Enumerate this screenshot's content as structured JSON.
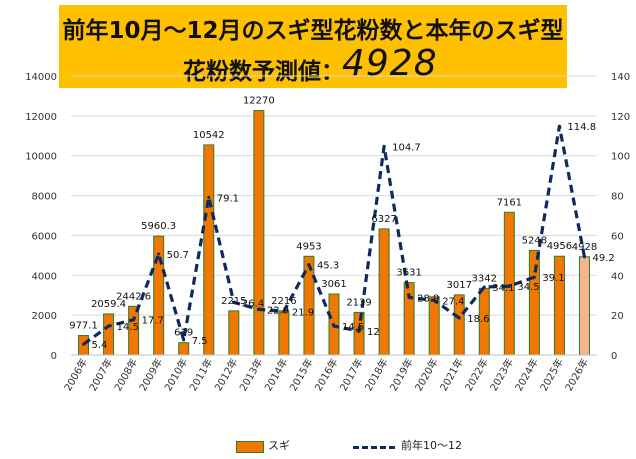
{
  "title": {
    "line1": "前年10月～12月のスギ型花粉数と本年のスギ型",
    "line2": "花粉数予測値：",
    "value": "4928"
  },
  "colors": {
    "bar": "#f07800",
    "bar_border": "#2f7b2f",
    "bar_forecast": "#f8b48e",
    "line": "#0f2a5e",
    "grid": "#d9d9d9",
    "title_bg": "#ffc000"
  },
  "chart_data": {
    "type": "bar",
    "categories": [
      "2006年",
      "2007年",
      "2008年",
      "2009年",
      "2010年",
      "2011年",
      "2012年",
      "2013年",
      "2014年",
      "2015年",
      "2016年",
      "2017年",
      "2018年",
      "2019年",
      "2020年",
      "2021年",
      "2022年",
      "2023年",
      "2024年",
      "2025年",
      "2026年"
    ],
    "series": [
      {
        "name": "スギ",
        "type": "bar",
        "axis": "left",
        "values": [
          977.1,
          2059.4,
          2442.6,
          5960.3,
          619,
          10542,
          2215,
          12270,
          2216,
          4953,
          3061,
          2139,
          6327,
          3631,
          2920,
          3017,
          3342,
          7161,
          5248,
          4956,
          4928
        ],
        "labels": [
          "977.1",
          "2059.4",
          "2442.6",
          "5960.3",
          "619",
          "10542",
          "2215",
          "12270",
          "2216",
          "4953",
          "3061",
          "2139",
          "6327",
          "3631",
          "",
          "3017",
          "3342",
          "7161",
          "5248",
          "4956",
          "4928"
        ]
      },
      {
        "name": "前年10～12",
        "type": "line",
        "axis": "right",
        "values": [
          5.4,
          14.5,
          17.7,
          50.7,
          7.5,
          79.1,
          26.4,
          22.9,
          21.9,
          45.3,
          14.5,
          12,
          104.7,
          28.9,
          27.4,
          18.6,
          34.1,
          34.5,
          39.1,
          114.8,
          49.2
        ],
        "labels": [
          "5.4",
          "14.5",
          "17.7",
          "50.7",
          "7.5",
          "79.1",
          "26.4",
          "22.9",
          "21.9",
          "45.3",
          "14.5",
          "12",
          "104.7",
          "28.9",
          "27.4",
          "18.6",
          "34.1",
          "34.5",
          "39.1",
          "114.8",
          "49.2"
        ]
      }
    ],
    "y_left": {
      "min": 0,
      "max": 14000,
      "step": 2000
    },
    "y_right": {
      "min": 0,
      "max": 140,
      "step": 20
    },
    "forecast_index": 20,
    "legend_position": "bottom"
  }
}
